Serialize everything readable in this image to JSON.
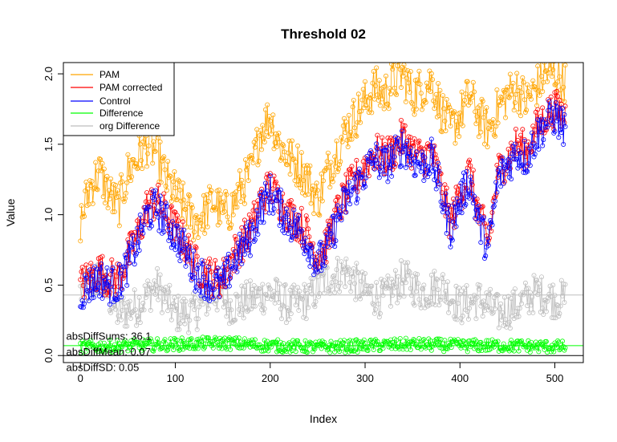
{
  "chart_data": {
    "type": "line",
    "title": "Threshold 02",
    "xlabel": "Index",
    "ylabel": "Value",
    "xlim": [
      -18,
      530
    ],
    "ylim": [
      -0.05,
      2.08
    ],
    "x_ticks": [
      0,
      100,
      200,
      300,
      400,
      500
    ],
    "x_tick_labels": [
      "0",
      "100",
      "200",
      "300",
      "400",
      "500"
    ],
    "y_ticks": [
      0.0,
      0.5,
      1.0,
      1.5,
      2.0
    ],
    "y_tick_labels": [
      "0.0",
      "0.5",
      "1.0",
      "1.5",
      "2.0"
    ],
    "n_points": 512,
    "markers": "open circles on every point",
    "legend_position": "top-left",
    "series": [
      {
        "name": "PAM",
        "color": "#FFA500",
        "anchors": [
          [
            0,
            0.95
          ],
          [
            10,
            1.2
          ],
          [
            20,
            1.3
          ],
          [
            30,
            1.15
          ],
          [
            40,
            1.05
          ],
          [
            50,
            1.3
          ],
          [
            60,
            1.4
          ],
          [
            70,
            1.5
          ],
          [
            80,
            1.45
          ],
          [
            90,
            1.25
          ],
          [
            100,
            1.15
          ],
          [
            110,
            1.05
          ],
          [
            120,
            0.95
          ],
          [
            130,
            1.0
          ],
          [
            140,
            1.1
          ],
          [
            150,
            1.0
          ],
          [
            160,
            1.05
          ],
          [
            170,
            1.2
          ],
          [
            180,
            1.3
          ],
          [
            190,
            1.6
          ],
          [
            200,
            1.7
          ],
          [
            210,
            1.5
          ],
          [
            220,
            1.4
          ],
          [
            230,
            1.35
          ],
          [
            240,
            1.25
          ],
          [
            250,
            1.1
          ],
          [
            260,
            1.3
          ],
          [
            270,
            1.45
          ],
          [
            280,
            1.6
          ],
          [
            290,
            1.7
          ],
          [
            300,
            1.8
          ],
          [
            310,
            1.9
          ],
          [
            320,
            1.85
          ],
          [
            330,
            1.95
          ],
          [
            340,
            2.0
          ],
          [
            350,
            1.85
          ],
          [
            360,
            1.9
          ],
          [
            370,
            1.95
          ],
          [
            380,
            1.75
          ],
          [
            390,
            1.6
          ],
          [
            400,
            1.7
          ],
          [
            410,
            1.85
          ],
          [
            420,
            1.7
          ],
          [
            430,
            1.6
          ],
          [
            440,
            1.75
          ],
          [
            450,
            1.85
          ],
          [
            460,
            1.9
          ],
          [
            470,
            1.8
          ],
          [
            480,
            1.9
          ],
          [
            490,
            2.0
          ],
          [
            500,
            2.0
          ],
          [
            511,
            1.95
          ]
        ]
      },
      {
        "name": "PAM corrected",
        "color": "#FF0000",
        "anchors": [
          [
            0,
            0.5
          ],
          [
            10,
            0.55
          ],
          [
            20,
            0.6
          ],
          [
            30,
            0.55
          ],
          [
            40,
            0.55
          ],
          [
            50,
            0.7
          ],
          [
            60,
            0.85
          ],
          [
            70,
            1.05
          ],
          [
            80,
            1.1
          ],
          [
            90,
            1.0
          ],
          [
            100,
            0.9
          ],
          [
            110,
            0.8
          ],
          [
            120,
            0.65
          ],
          [
            130,
            0.6
          ],
          [
            140,
            0.55
          ],
          [
            150,
            0.55
          ],
          [
            160,
            0.7
          ],
          [
            170,
            0.8
          ],
          [
            180,
            0.9
          ],
          [
            190,
            1.1
          ],
          [
            200,
            1.2
          ],
          [
            210,
            1.1
          ],
          [
            220,
            1.0
          ],
          [
            230,
            0.95
          ],
          [
            240,
            0.85
          ],
          [
            250,
            0.7
          ],
          [
            260,
            0.8
          ],
          [
            270,
            1.0
          ],
          [
            280,
            1.15
          ],
          [
            290,
            1.25
          ],
          [
            300,
            1.35
          ],
          [
            310,
            1.45
          ],
          [
            320,
            1.4
          ],
          [
            330,
            1.45
          ],
          [
            340,
            1.55
          ],
          [
            350,
            1.45
          ],
          [
            360,
            1.4
          ],
          [
            370,
            1.45
          ],
          [
            380,
            1.2
          ],
          [
            390,
            0.95
          ],
          [
            400,
            1.15
          ],
          [
            410,
            1.3
          ],
          [
            420,
            1.0
          ],
          [
            430,
            0.8
          ],
          [
            440,
            1.3
          ],
          [
            450,
            1.4
          ],
          [
            460,
            1.5
          ],
          [
            470,
            1.45
          ],
          [
            480,
            1.6
          ],
          [
            490,
            1.7
          ],
          [
            500,
            1.75
          ],
          [
            511,
            1.7
          ]
        ]
      },
      {
        "name": "Control",
        "color": "#0000FF",
        "anchors": [
          [
            0,
            0.45
          ],
          [
            10,
            0.5
          ],
          [
            20,
            0.55
          ],
          [
            30,
            0.5
          ],
          [
            40,
            0.5
          ],
          [
            50,
            0.65
          ],
          [
            60,
            0.8
          ],
          [
            70,
            1.0
          ],
          [
            80,
            1.05
          ],
          [
            90,
            0.95
          ],
          [
            100,
            0.85
          ],
          [
            110,
            0.75
          ],
          [
            120,
            0.6
          ],
          [
            130,
            0.55
          ],
          [
            140,
            0.5
          ],
          [
            150,
            0.5
          ],
          [
            160,
            0.65
          ],
          [
            170,
            0.75
          ],
          [
            180,
            0.85
          ],
          [
            190,
            1.05
          ],
          [
            200,
            1.15
          ],
          [
            210,
            1.05
          ],
          [
            220,
            0.95
          ],
          [
            230,
            0.9
          ],
          [
            240,
            0.8
          ],
          [
            250,
            0.65
          ],
          [
            260,
            0.75
          ],
          [
            270,
            0.95
          ],
          [
            280,
            1.1
          ],
          [
            290,
            1.2
          ],
          [
            300,
            1.3
          ],
          [
            310,
            1.4
          ],
          [
            320,
            1.35
          ],
          [
            330,
            1.4
          ],
          [
            340,
            1.5
          ],
          [
            350,
            1.4
          ],
          [
            360,
            1.35
          ],
          [
            370,
            1.4
          ],
          [
            380,
            1.15
          ],
          [
            390,
            0.9
          ],
          [
            400,
            1.1
          ],
          [
            410,
            1.25
          ],
          [
            420,
            0.95
          ],
          [
            430,
            0.75
          ],
          [
            440,
            1.25
          ],
          [
            450,
            1.35
          ],
          [
            460,
            1.45
          ],
          [
            470,
            1.4
          ],
          [
            480,
            1.55
          ],
          [
            490,
            1.65
          ],
          [
            500,
            1.7
          ],
          [
            511,
            1.6
          ]
        ]
      },
      {
        "name": "Difference",
        "color": "#00FF00",
        "anchors": [
          [
            0,
            0.06
          ],
          [
            50,
            0.07
          ],
          [
            100,
            0.08
          ],
          [
            150,
            0.09
          ],
          [
            200,
            0.07
          ],
          [
            250,
            0.06
          ],
          [
            300,
            0.07
          ],
          [
            350,
            0.08
          ],
          [
            400,
            0.07
          ],
          [
            450,
            0.07
          ],
          [
            511,
            0.06
          ]
        ],
        "mean_line": 0.07
      },
      {
        "name": "org Difference",
        "color": "#BEBEBE",
        "anchors": [
          [
            0,
            0.45
          ],
          [
            20,
            0.55
          ],
          [
            40,
            0.3
          ],
          [
            60,
            0.35
          ],
          [
            80,
            0.5
          ],
          [
            100,
            0.3
          ],
          [
            120,
            0.3
          ],
          [
            140,
            0.45
          ],
          [
            160,
            0.35
          ],
          [
            180,
            0.4
          ],
          [
            200,
            0.45
          ],
          [
            220,
            0.35
          ],
          [
            240,
            0.4
          ],
          [
            260,
            0.55
          ],
          [
            280,
            0.6
          ],
          [
            300,
            0.45
          ],
          [
            320,
            0.4
          ],
          [
            340,
            0.55
          ],
          [
            360,
            0.45
          ],
          [
            380,
            0.5
          ],
          [
            400,
            0.35
          ],
          [
            420,
            0.4
          ],
          [
            440,
            0.3
          ],
          [
            460,
            0.35
          ],
          [
            480,
            0.45
          ],
          [
            500,
            0.4
          ],
          [
            511,
            0.4
          ]
        ],
        "mean_line": 0.43
      }
    ],
    "zero_line": 0,
    "annotations": [
      {
        "text": "absDiffSums: 36.1",
        "x": -15,
        "y": 0.14
      },
      {
        "text": "absDiffMean: 0.07",
        "x": -15,
        "y": 0.03
      },
      {
        "text": "absDiffSD: 0.05",
        "x": -15,
        "y": -0.08
      }
    ]
  }
}
